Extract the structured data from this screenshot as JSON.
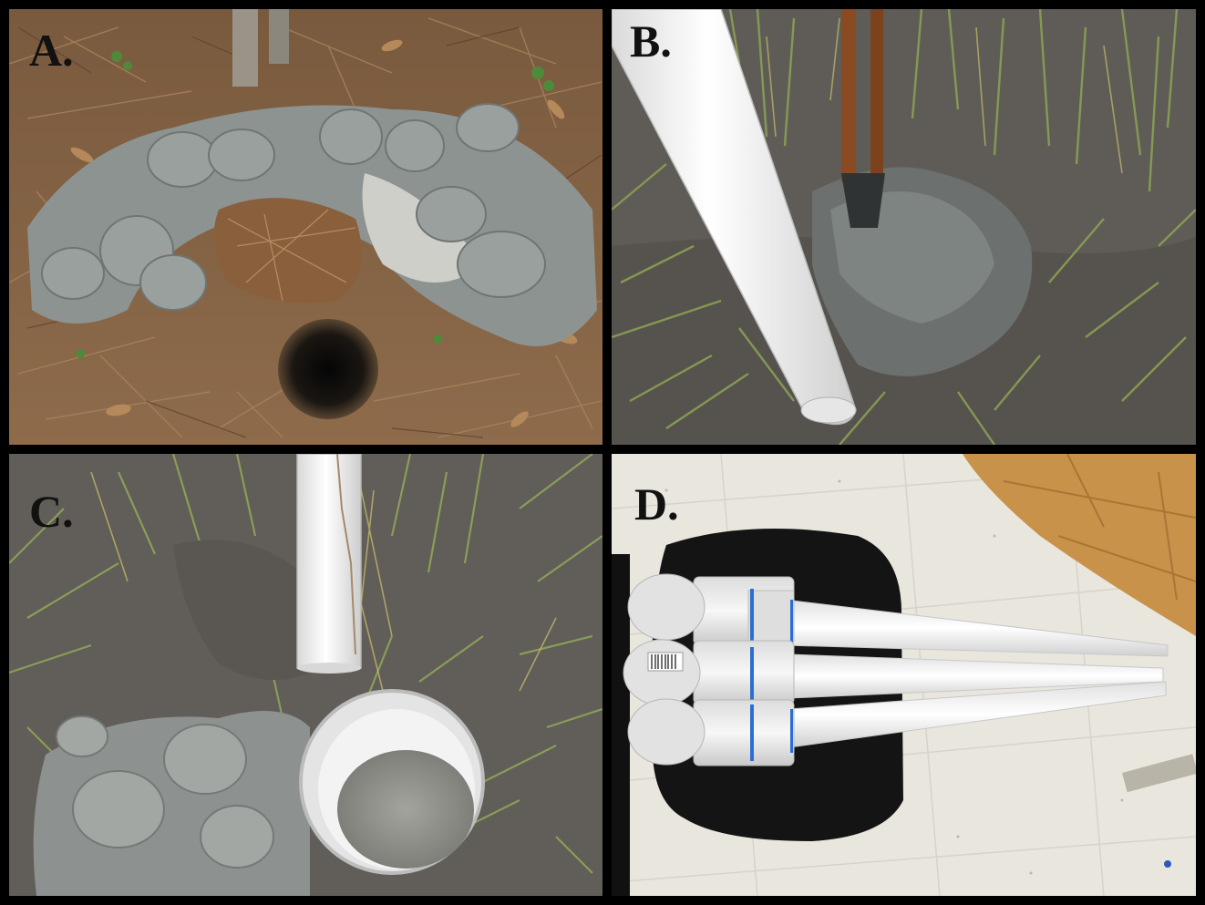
{
  "panels": [
    {
      "label": "A."
    },
    {
      "label": "B."
    },
    {
      "label": "C."
    },
    {
      "label": "D."
    }
  ],
  "colors": {
    "frame": "#000000",
    "pine_straw": "#8a6a4a",
    "gray_mud": "#8c9290",
    "dark_marsh_mud": "#5d5a55",
    "pvc_white": "#f2f2f2",
    "floor_tile": "#e9e6de",
    "cabinet_wood": "#c8924a",
    "chair_black": "#141414"
  }
}
